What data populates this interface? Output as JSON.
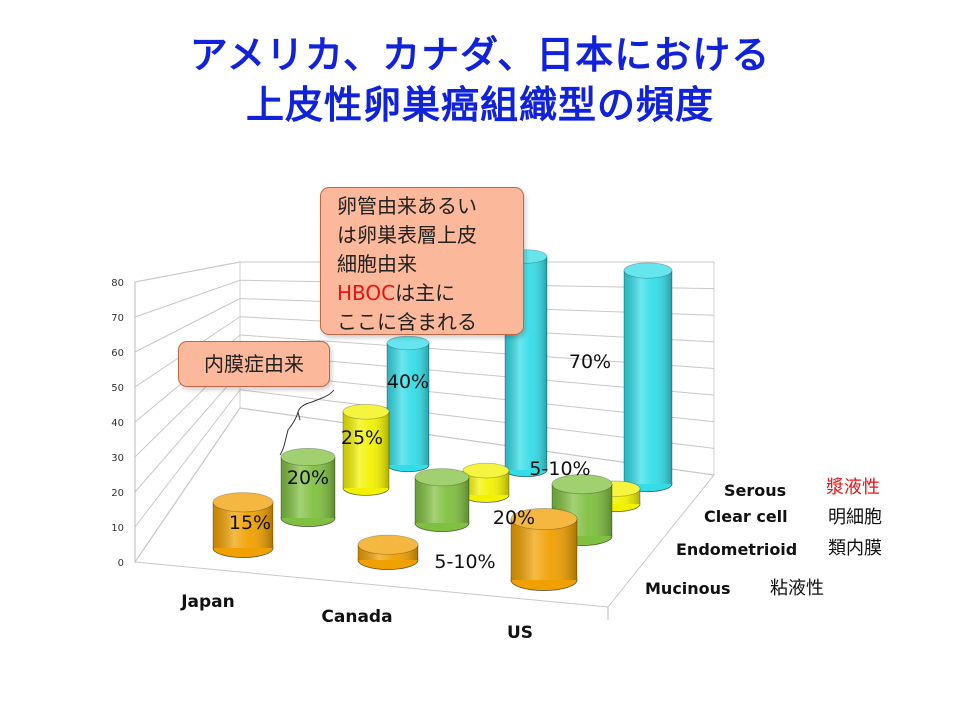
{
  "title": {
    "line1": "アメリカ、カナダ、日本における",
    "line2": "上皮性卵巣癌組織型の頻度"
  },
  "chart_data": {
    "type": "bar",
    "style": "3d-cylinder",
    "categories": [
      "Japan",
      "Canada",
      "US"
    ],
    "ylim": [
      0,
      80
    ],
    "yticks": [
      "0",
      "10",
      "20",
      "30",
      "40",
      "50",
      "60",
      "70",
      "80"
    ],
    "grid": true,
    "series": [
      {
        "name": "Mucinous",
        "name_ja": "粘液性",
        "color": "#f0a000",
        "values": [
          15,
          5,
          20
        ],
        "labels": [
          "15%",
          "5-10%",
          "20%"
        ]
      },
      {
        "name": "Endometrioid",
        "name_ja": "類内膜",
        "color": "#80c040",
        "values": [
          20,
          15,
          17
        ],
        "labels": [
          "20%",
          "",
          ""
        ]
      },
      {
        "name": "Clear cell",
        "name_ja": "明細胞",
        "color": "#f2f200",
        "values": [
          25,
          8,
          5
        ],
        "labels": [
          "25%",
          "5-10%",
          ""
        ]
      },
      {
        "name": "Serous",
        "name_ja": "漿液性",
        "color": "#33dde8",
        "values": [
          40,
          70,
          70
        ],
        "labels": [
          "40%",
          "",
          "70%"
        ]
      }
    ]
  },
  "callouts": {
    "endometriosis": "内膜症由来",
    "serous_line1": "卵管由来あるい",
    "serous_line2": "は卵巣表層上皮",
    "serous_line3": "細胞由来",
    "serous_hboc": "HBOC",
    "serous_line4_rest": "は主に",
    "serous_line5": "ここに含まれる"
  },
  "colors": {
    "title": "#1122dd",
    "serous_ja_label": "#ee1111",
    "callout_fill": "#fbb89a",
    "callout_border": "#c0674a"
  }
}
